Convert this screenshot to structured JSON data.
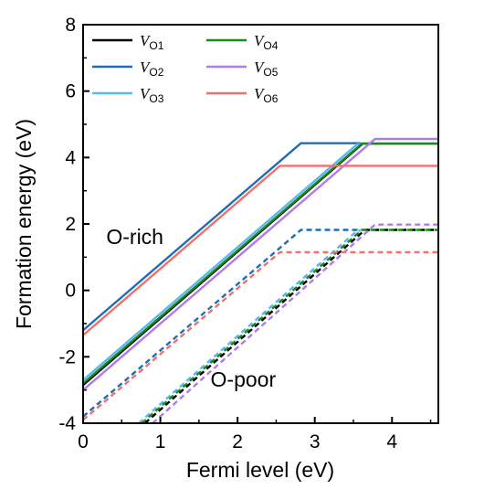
{
  "chart_data": {
    "type": "line",
    "xlabel": "Fermi level (eV)",
    "ylabel": "Formation energy (eV)",
    "xlim": [
      0,
      4.6
    ],
    "ylim": [
      -4,
      8
    ],
    "xticks": [
      0,
      1,
      2,
      3,
      4
    ],
    "yticks": [
      -4,
      -2,
      0,
      2,
      4,
      6,
      8
    ],
    "grid": false,
    "legend_position": "top-left, two columns",
    "annotations": [
      {
        "text": "O-rich",
        "x": 0.3,
        "y": 1.4
      },
      {
        "text": "O-poor",
        "x": 1.65,
        "y": -2.9
      }
    ],
    "series": [
      {
        "name": "V_O1",
        "color": "#000000",
        "style": "solid",
        "condition": "O-rich",
        "points": [
          [
            0,
            -2.85
          ],
          [
            3.62,
            4.42
          ],
          [
            4.6,
            4.42
          ]
        ]
      },
      {
        "name": "V_O2",
        "color": "#1f6db5",
        "style": "solid",
        "condition": "O-rich",
        "points": [
          [
            0,
            -1.2
          ],
          [
            2.82,
            4.43
          ],
          [
            3.6,
            4.43
          ]
        ]
      },
      {
        "name": "V_O3",
        "color": "#5ab8ee",
        "style": "solid",
        "condition": "O-rich",
        "points": [
          [
            0,
            -2.7
          ],
          [
            3.55,
            4.4
          ],
          [
            3.6,
            4.4
          ]
        ]
      },
      {
        "name": "V_O4",
        "color": "#1a8a1a",
        "style": "solid",
        "condition": "O-rich",
        "points": [
          [
            0,
            -2.8
          ],
          [
            3.61,
            4.42
          ],
          [
            4.6,
            4.42
          ]
        ]
      },
      {
        "name": "V_O5",
        "color": "#b07ae8",
        "style": "solid",
        "condition": "O-rich",
        "points": [
          [
            0,
            -3.0
          ],
          [
            3.78,
            4.56
          ],
          [
            4.6,
            4.56
          ]
        ]
      },
      {
        "name": "V_O6",
        "color": "#f07070",
        "style": "solid",
        "condition": "O-rich",
        "points": [
          [
            0,
            -1.35
          ],
          [
            2.55,
            3.75
          ],
          [
            4.6,
            3.75
          ]
        ]
      },
      {
        "name": "V_O1",
        "color": "#000000",
        "style": "dashed",
        "condition": "O-poor",
        "points": [
          [
            0.8,
            -4.0
          ],
          [
            3.65,
            1.82
          ],
          [
            4.6,
            1.82
          ]
        ]
      },
      {
        "name": "V_O2",
        "color": "#1f6db5",
        "style": "dashed",
        "condition": "O-poor",
        "points": [
          [
            0,
            -3.8
          ],
          [
            2.82,
            1.82
          ],
          [
            3.6,
            1.82
          ]
        ]
      },
      {
        "name": "V_O3",
        "color": "#5ab8ee",
        "style": "dashed",
        "condition": "O-poor",
        "points": [
          [
            0.72,
            -4.0
          ],
          [
            3.55,
            1.8
          ],
          [
            3.6,
            1.8
          ]
        ]
      },
      {
        "name": "V_O4",
        "color": "#1a8a1a",
        "style": "dashed",
        "condition": "O-poor",
        "points": [
          [
            0.76,
            -4.0
          ],
          [
            3.61,
            1.82
          ],
          [
            4.6,
            1.82
          ]
        ]
      },
      {
        "name": "V_O5",
        "color": "#b07ae8",
        "style": "dashed",
        "condition": "O-poor",
        "points": [
          [
            0.9,
            -4.0
          ],
          [
            3.78,
            1.98
          ],
          [
            4.6,
            1.98
          ]
        ]
      },
      {
        "name": "V_O6",
        "color": "#f07070",
        "style": "dashed",
        "condition": "O-poor",
        "points": [
          [
            0,
            -3.9
          ],
          [
            2.55,
            1.15
          ],
          [
            4.6,
            1.15
          ]
        ]
      }
    ],
    "legend": [
      {
        "base": "V",
        "sub": "O1",
        "color": "#000000"
      },
      {
        "base": "V",
        "sub": "O2",
        "color": "#1f6db5"
      },
      {
        "base": "V",
        "sub": "O3",
        "color": "#5ab8ee"
      },
      {
        "base": "V",
        "sub": "O4",
        "color": "#1a8a1a"
      },
      {
        "base": "V",
        "sub": "O5",
        "color": "#b07ae8"
      },
      {
        "base": "V",
        "sub": "O6",
        "color": "#f07070"
      }
    ]
  }
}
